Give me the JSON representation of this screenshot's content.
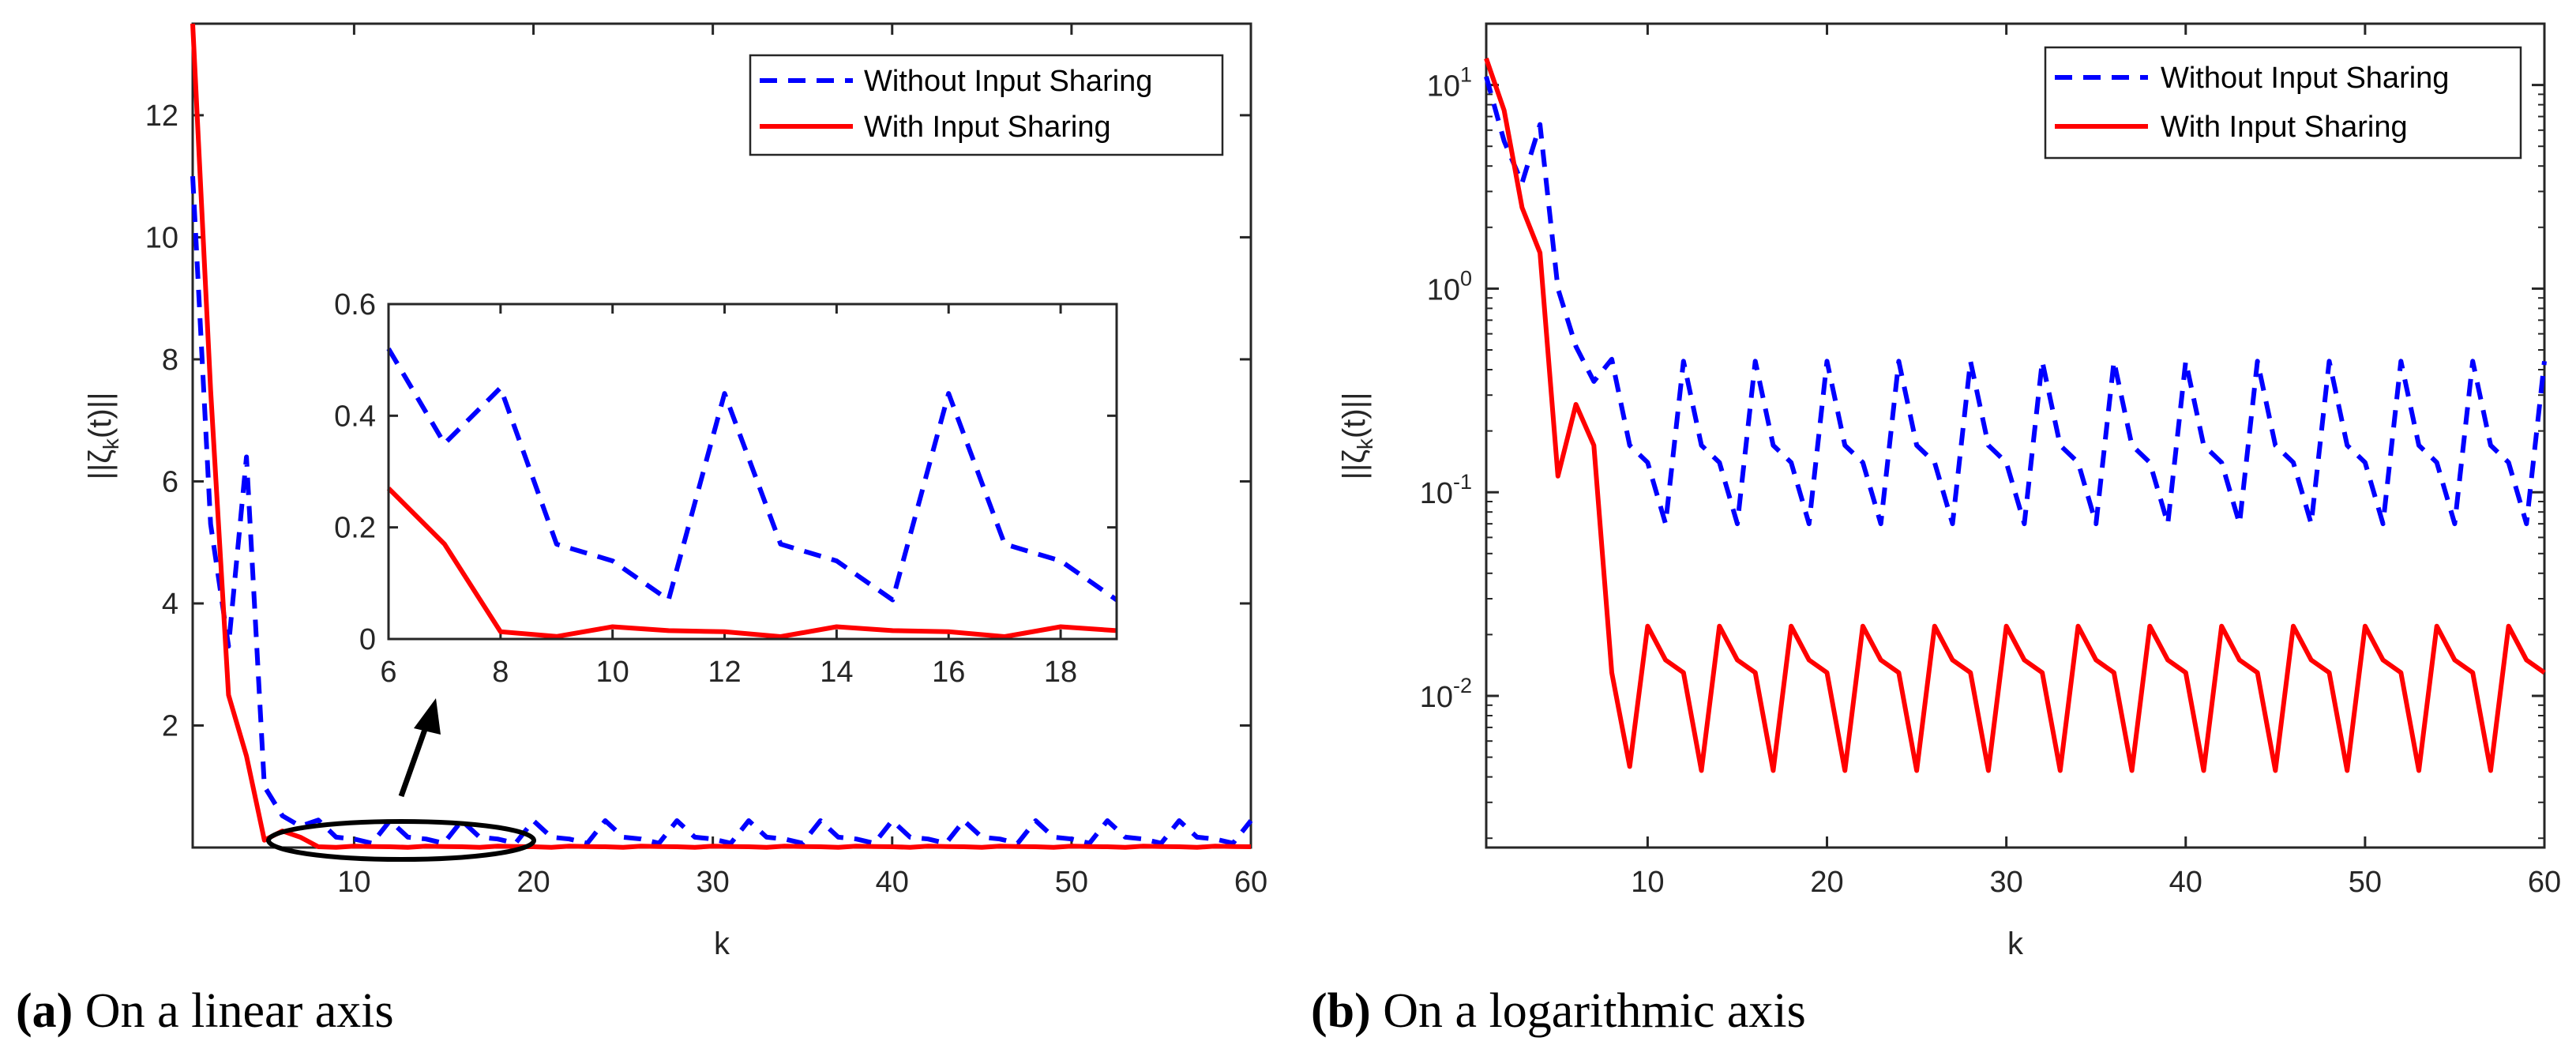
{
  "chart_data": [
    {
      "type": "line",
      "title": "",
      "xlabel": "k",
      "ylabel": "||ζ_k(t)||",
      "yscale": "linear",
      "xlim": [
        1,
        60
      ],
      "ylim": [
        0,
        13.5
      ],
      "xticks": [
        10,
        20,
        30,
        40,
        50,
        60
      ],
      "yticks": [
        2,
        4,
        6,
        8,
        10,
        12
      ],
      "grid": false,
      "legend_position": "top-right",
      "series": [
        {
          "name": "Without Input Sharing",
          "style": "dashed",
          "color": "#0000ff",
          "x": [
            1,
            2,
            3,
            4,
            5,
            6,
            7,
            8,
            9,
            10,
            11,
            12,
            13,
            14,
            15,
            16,
            17,
            18,
            19,
            20,
            21,
            22,
            23,
            24,
            25,
            26,
            27,
            28,
            29,
            30,
            31,
            32,
            33,
            34,
            35,
            36,
            37,
            38,
            39,
            40,
            41,
            42,
            43,
            44,
            45,
            46,
            47,
            48,
            49,
            50,
            51,
            52,
            53,
            54,
            55,
            56,
            57,
            58,
            59,
            60
          ],
          "values": [
            11,
            5.3,
            3.3,
            6.4,
            1.0,
            0.52,
            0.35,
            0.45,
            0.17,
            0.14,
            0.07,
            0.44,
            0.17,
            0.14,
            0.07,
            0.44,
            0.17,
            0.14,
            0.07,
            0.44,
            0.17,
            0.14,
            0.07,
            0.44,
            0.17,
            0.14,
            0.07,
            0.44,
            0.17,
            0.14,
            0.07,
            0.44,
            0.17,
            0.14,
            0.07,
            0.44,
            0.17,
            0.14,
            0.07,
            0.44,
            0.17,
            0.14,
            0.07,
            0.44,
            0.17,
            0.14,
            0.07,
            0.44,
            0.17,
            0.14,
            0.07,
            0.44,
            0.17,
            0.14,
            0.07,
            0.44,
            0.17,
            0.14,
            0.07,
            0.44
          ]
        },
        {
          "name": "With Input Sharing",
          "style": "solid",
          "color": "#ff0000",
          "x": [
            1,
            2,
            3,
            4,
            5,
            6,
            7,
            8,
            9,
            10,
            11,
            12,
            13,
            14,
            15,
            16,
            17,
            18,
            19,
            20,
            21,
            22,
            23,
            24,
            25,
            26,
            27,
            28,
            29,
            30,
            31,
            32,
            33,
            34,
            35,
            36,
            37,
            38,
            39,
            40,
            41,
            42,
            43,
            44,
            45,
            46,
            47,
            48,
            49,
            50,
            51,
            52,
            53,
            54,
            55,
            56,
            57,
            58,
            59,
            60
          ],
          "values": [
            13.5,
            7.5,
            2.5,
            1.5,
            0.12,
            0.27,
            0.17,
            0.013,
            0.0045,
            0.022,
            0.015,
            0.013,
            0.0043,
            0.022,
            0.015,
            0.013,
            0.0043,
            0.022,
            0.015,
            0.013,
            0.0043,
            0.022,
            0.015,
            0.013,
            0.0043,
            0.022,
            0.015,
            0.013,
            0.0043,
            0.022,
            0.015,
            0.013,
            0.0043,
            0.022,
            0.015,
            0.013,
            0.0043,
            0.022,
            0.015,
            0.013,
            0.0043,
            0.022,
            0.015,
            0.013,
            0.0043,
            0.022,
            0.015,
            0.013,
            0.0043,
            0.022,
            0.015,
            0.013,
            0.0043,
            0.022,
            0.015,
            0.013,
            0.0043,
            0.022,
            0.015,
            0.013
          ]
        }
      ],
      "inset": {
        "xlim": [
          6,
          19
        ],
        "ylim": [
          0,
          0.6
        ],
        "xticks": [
          6,
          8,
          10,
          12,
          14,
          16,
          18
        ],
        "yticks": [
          0,
          0.2,
          0.4,
          0.6
        ]
      }
    },
    {
      "type": "line",
      "title": "",
      "xlabel": "k",
      "ylabel": "||ζ_k(t)||",
      "yscale": "log",
      "xlim": [
        1,
        60
      ],
      "ylim": [
        0.0018,
        20
      ],
      "xticks": [
        10,
        20,
        30,
        40,
        50,
        60
      ],
      "yticks": [
        0.01,
        0.1,
        1,
        10
      ],
      "grid": false,
      "legend_position": "top-right",
      "series": [
        {
          "name": "Without Input Sharing",
          "style": "dashed",
          "color": "#0000ff",
          "ref": 0
        },
        {
          "name": "With Input Sharing",
          "style": "solid",
          "color": "#ff0000",
          "ref": 1
        }
      ]
    }
  ],
  "panels": {
    "a": {
      "xlabel": "k",
      "ylabel_main": "||ζ",
      "ylabel_sub": "k",
      "ylabel_end": "(t)||",
      "yticks": [
        "2",
        "4",
        "6",
        "8",
        "10",
        "12"
      ],
      "xticks": [
        "10",
        "20",
        "30",
        "40",
        "50",
        "60"
      ],
      "inset_yticks": [
        "0",
        "0.2",
        "0.4",
        "0.6"
      ],
      "inset_xticks": [
        "6",
        "8",
        "10",
        "12",
        "14",
        "16",
        "18"
      ],
      "caption_letter": "(a)",
      "caption_text": " On a linear axis"
    },
    "b": {
      "xlabel": "k",
      "ylabel_main": "||ζ",
      "ylabel_sub": "k",
      "ylabel_end": "(t)||",
      "ytick_base": "10",
      "ytick_exps": [
        "-2",
        "-1",
        "0",
        "1"
      ],
      "xticks": [
        "10",
        "20",
        "30",
        "40",
        "50",
        "60"
      ],
      "caption_letter": "(b)",
      "caption_text": " On a logarithmic axis"
    }
  },
  "legend": {
    "without": "Without Input Sharing",
    "with": "With Input Sharing"
  },
  "colors": {
    "without": "#0000ff",
    "with": "#ff0000",
    "axis": "#262626"
  }
}
